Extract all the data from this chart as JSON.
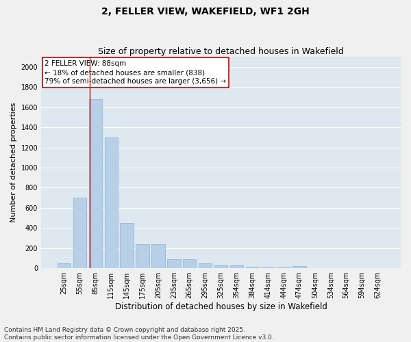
{
  "title": "2, FELLER VIEW, WAKEFIELD, WF1 2GH",
  "subtitle": "Size of property relative to detached houses in Wakefield",
  "xlabel": "Distribution of detached houses by size in Wakefield",
  "ylabel": "Number of detached properties",
  "categories": [
    "25sqm",
    "55sqm",
    "85sqm",
    "115sqm",
    "145sqm",
    "175sqm",
    "205sqm",
    "235sqm",
    "265sqm",
    "295sqm",
    "325sqm",
    "354sqm",
    "384sqm",
    "414sqm",
    "444sqm",
    "474sqm",
    "504sqm",
    "534sqm",
    "564sqm",
    "594sqm",
    "624sqm"
  ],
  "values": [
    50,
    700,
    1680,
    1300,
    450,
    240,
    240,
    90,
    90,
    50,
    30,
    30,
    15,
    10,
    5,
    25,
    0,
    0,
    0,
    0,
    0
  ],
  "bar_color": "#b8cfe8",
  "bar_edge_color": "#8aafd4",
  "vline_color": "#cc0000",
  "box_edge_color": "#cc0000",
  "ylim": [
    0,
    2100
  ],
  "yticks": [
    0,
    200,
    400,
    600,
    800,
    1000,
    1200,
    1400,
    1600,
    1800,
    2000
  ],
  "bg_color": "#dde8f0",
  "grid_color": "#ffffff",
  "fig_bg_color": "#f0f0f0",
  "annotation_box_text": "2 FELLER VIEW: 88sqm\n← 18% of detached houses are smaller (838)\n79% of semi-detached houses are larger (3,656) →",
  "footer_line1": "Contains HM Land Registry data © Crown copyright and database right 2025.",
  "footer_line2": "Contains public sector information licensed under the Open Government Licence v3.0.",
  "title_fontsize": 10,
  "subtitle_fontsize": 9,
  "axis_label_fontsize": 8,
  "tick_fontsize": 7,
  "annotation_fontsize": 7.5,
  "footer_fontsize": 6.5,
  "ylabel_fontsize": 8
}
